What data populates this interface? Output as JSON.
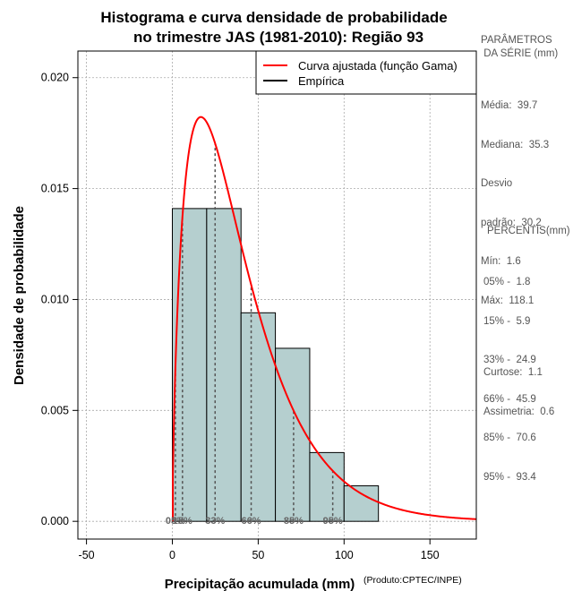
{
  "chart_data": {
    "type": "bar",
    "title_lines": [
      "Histograma e curva densidade de probabilidade",
      "no trimestre JAS (1981-2010): Região 93"
    ],
    "xlabel": "Precipitação acumulada (mm)",
    "ylabel": "Densidade de probabilidade",
    "xlim": [
      -55,
      177
    ],
    "ylim": [
      -0.0008,
      0.0212
    ],
    "x_ticks": [
      -50,
      0,
      50,
      100,
      150
    ],
    "x_tick_labels": [
      "-50",
      "0",
      "50",
      "100",
      "150"
    ],
    "y_ticks": [
      0.0,
      0.005,
      0.01,
      0.015,
      0.02
    ],
    "y_tick_labels": [
      "0.000",
      "0.005",
      "0.010",
      "0.015",
      "0.020"
    ],
    "grid": true,
    "bins": [
      {
        "from": 0,
        "to": 20,
        "density": 0.0141
      },
      {
        "from": 20,
        "to": 40,
        "density": 0.0141
      },
      {
        "from": 40,
        "to": 60,
        "density": 0.0094
      },
      {
        "from": 60,
        "to": 80,
        "density": 0.0078
      },
      {
        "from": 80,
        "to": 100,
        "density": 0.0031
      },
      {
        "from": 100,
        "to": 120,
        "density": 0.0016
      }
    ],
    "fitted_curve": {
      "name": "Curva ajustada (função Gama)",
      "distribution": "gamma",
      "shape": 1.72,
      "scale": 23.1,
      "x_start": 0.3,
      "x_end": 177,
      "color": "#ff0000"
    },
    "percentiles": [
      {
        "label": "05%",
        "value": 1.8
      },
      {
        "label": "15%",
        "value": 5.9
      },
      {
        "label": "33%",
        "value": 24.9
      },
      {
        "label": "66%",
        "value": 45.9
      },
      {
        "label": "85%",
        "value": 70.6
      },
      {
        "label": "95%",
        "value": 93.4
      }
    ],
    "legend": [
      {
        "label": "Curva ajustada (função Gama)",
        "color": "#ff0000"
      },
      {
        "label": "Empírica",
        "color": "#000000"
      }
    ],
    "legend_position": "top-right",
    "bar_color": "#b5cfcf",
    "credit": "(Produto:CPTEC/INPE)"
  },
  "sidebar": {
    "params_title_line1": "PARÂMETROS",
    "params_title_line2": " DA SÉRIE (mm)",
    "stats": [
      {
        "label": "Média:",
        "value": "39.7"
      },
      {
        "label": "Mediana:",
        "value": "35.3"
      },
      {
        "label": "Desvio",
        "value": ""
      },
      {
        "label": "padrão:",
        "value": "30.2"
      },
      {
        "label": "Mín:",
        "value": "1.6"
      },
      {
        "label": "Máx:",
        "value": "118.1"
      }
    ],
    "percentis_title": "PERCENTIS(mm)",
    "percentis": [
      {
        "label": "05% -",
        "value": "1.8"
      },
      {
        "label": "15% -",
        "value": "5.9"
      },
      {
        "label": "33% -",
        "value": "24.9"
      },
      {
        "label": "66% -",
        "value": "45.9"
      },
      {
        "label": "85% -",
        "value": "70.6"
      },
      {
        "label": "95% -",
        "value": "93.4"
      }
    ],
    "extra": [
      {
        "label": "Curtose:",
        "value": "1.1"
      },
      {
        "label": "Assimetria:",
        "value": "0.6"
      }
    ]
  }
}
